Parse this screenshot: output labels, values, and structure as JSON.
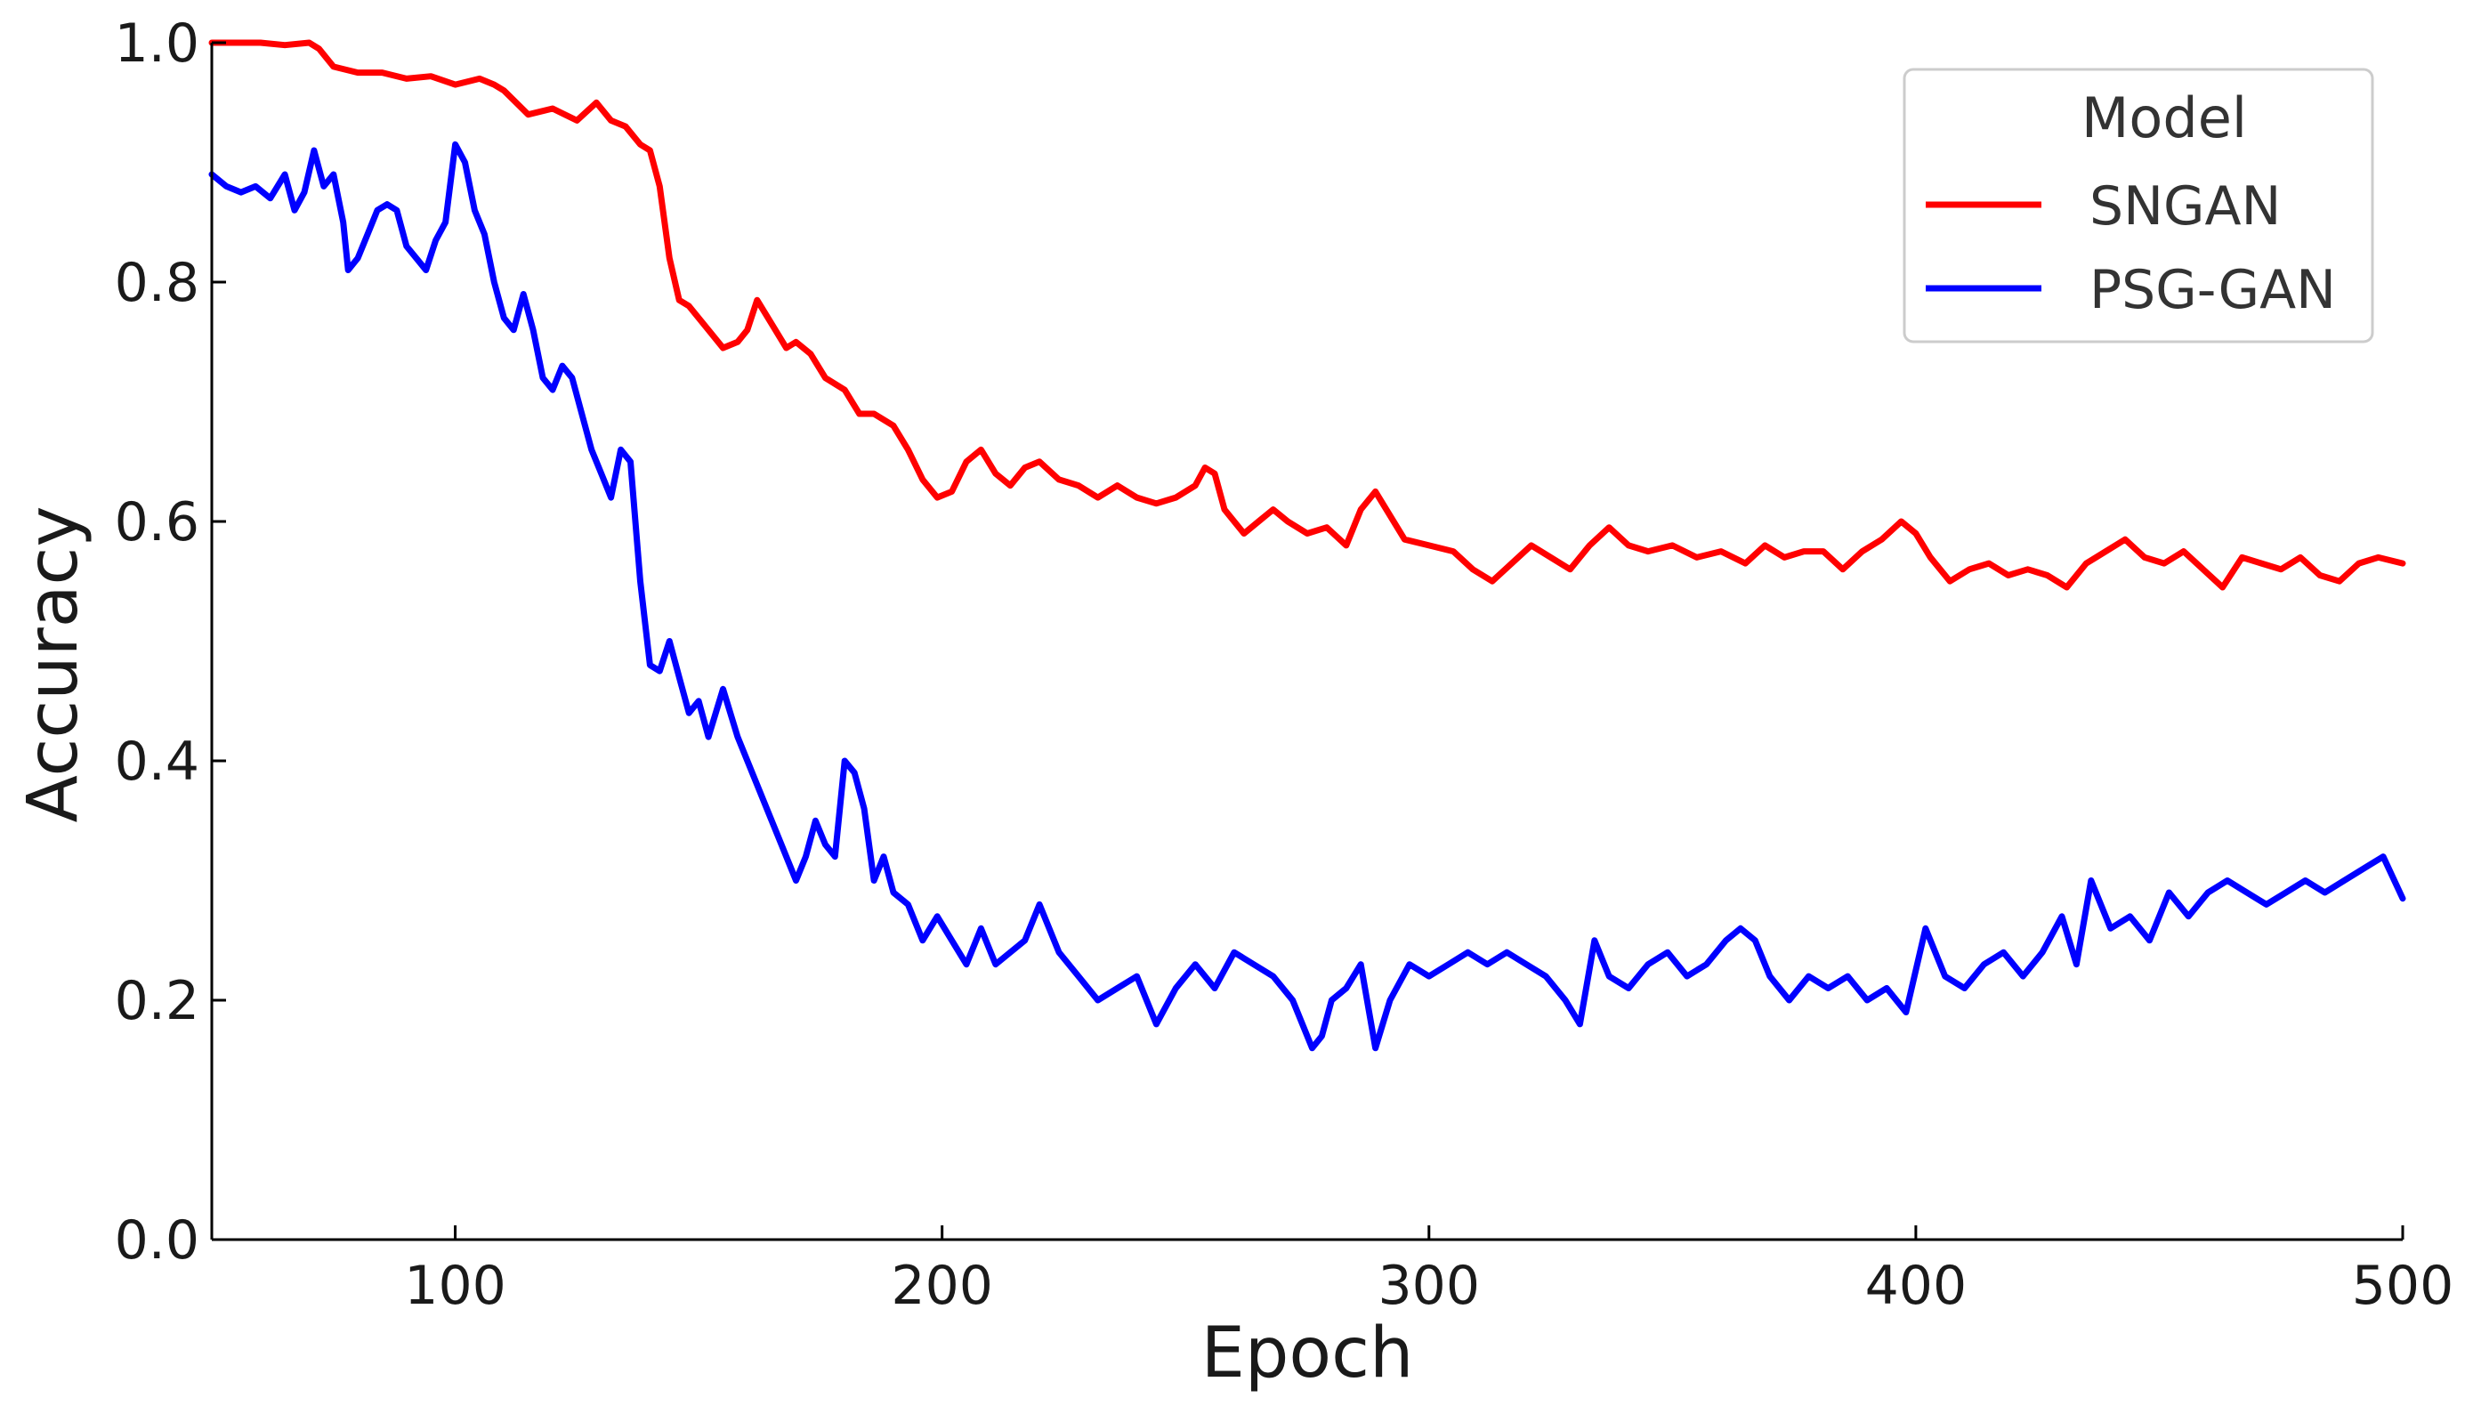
{
  "chart_data": {
    "type": "line",
    "title": "",
    "xlabel": "Epoch",
    "ylabel": "Accuracy",
    "xlim": [
      50,
      500
    ],
    "ylim": [
      0.0,
      1.0
    ],
    "x_ticks": [
      "100",
      "200",
      "300",
      "400",
      "500"
    ],
    "x_tick_values": [
      100,
      200,
      300,
      400,
      500
    ],
    "y_ticks": [
      "0.0",
      "0.2",
      "0.4",
      "0.6",
      "0.8",
      "1.0"
    ],
    "y_tick_values": [
      0.0,
      0.2,
      0.4,
      0.6,
      0.8,
      1.0
    ],
    "grid": false,
    "legend": {
      "title": "Model",
      "placement": "top-right"
    },
    "series": [
      {
        "name": "SNGAN",
        "color": "#ff0000",
        "x": [
          50,
          55,
          60,
          65,
          70,
          72,
          75,
          80,
          85,
          90,
          95,
          100,
          105,
          108,
          110,
          115,
          120,
          125,
          129,
          132,
          135,
          138,
          140,
          142,
          144,
          146,
          148,
          150,
          152,
          155,
          158,
          160,
          162,
          165,
          168,
          170,
          173,
          176,
          180,
          183,
          186,
          190,
          193,
          196,
          199,
          202,
          205,
          208,
          211,
          214,
          217,
          220,
          224,
          228,
          232,
          236,
          240,
          244,
          248,
          252,
          254,
          256,
          258,
          262,
          265,
          268,
          271,
          275,
          279,
          283,
          286,
          289,
          292,
          295,
          300,
          305,
          309,
          313,
          317,
          321,
          325,
          329,
          333,
          337,
          341,
          345,
          350,
          355,
          360,
          365,
          369,
          373,
          377,
          381,
          385,
          389,
          393,
          397,
          400,
          403,
          407,
          411,
          415,
          419,
          423,
          427,
          431,
          435,
          439,
          443,
          447,
          451,
          455,
          459,
          463,
          467,
          471,
          475,
          479,
          483,
          487,
          491,
          495,
          500
        ],
        "y": [
          1.0,
          1.0,
          1.0,
          0.998,
          1.0,
          0.995,
          0.98,
          0.975,
          0.975,
          0.97,
          0.972,
          0.965,
          0.97,
          0.965,
          0.96,
          0.94,
          0.945,
          0.935,
          0.95,
          0.935,
          0.93,
          0.915,
          0.91,
          0.88,
          0.82,
          0.785,
          0.78,
          0.77,
          0.76,
          0.745,
          0.75,
          0.76,
          0.785,
          0.765,
          0.745,
          0.75,
          0.74,
          0.72,
          0.71,
          0.69,
          0.69,
          0.68,
          0.66,
          0.635,
          0.62,
          0.625,
          0.65,
          0.66,
          0.64,
          0.63,
          0.645,
          0.65,
          0.635,
          0.63,
          0.62,
          0.63,
          0.62,
          0.615,
          0.62,
          0.63,
          0.645,
          0.64,
          0.61,
          0.59,
          0.6,
          0.61,
          0.6,
          0.59,
          0.595,
          0.58,
          0.61,
          0.625,
          0.605,
          0.585,
          0.58,
          0.575,
          0.56,
          0.55,
          0.565,
          0.58,
          0.57,
          0.56,
          0.58,
          0.595,
          0.58,
          0.575,
          0.58,
          0.57,
          0.575,
          0.565,
          0.58,
          0.57,
          0.575,
          0.575,
          0.56,
          0.575,
          0.585,
          0.6,
          0.59,
          0.57,
          0.55,
          0.56,
          0.565,
          0.555,
          0.56,
          0.555,
          0.545,
          0.565,
          0.575,
          0.585,
          0.57,
          0.565,
          0.575,
          0.56,
          0.545,
          0.57,
          0.565,
          0.56,
          0.57,
          0.555,
          0.55,
          0.565,
          0.57,
          0.565
        ]
      },
      {
        "name": "PSG-GAN",
        "color": "#0000ff",
        "x": [
          50,
          53,
          56,
          59,
          62,
          65,
          67,
          69,
          71,
          73,
          75,
          77,
          78,
          80,
          82,
          84,
          86,
          88,
          90,
          92,
          94,
          96,
          98,
          100,
          102,
          104,
          106,
          108,
          110,
          112,
          114,
          116,
          118,
          120,
          122,
          124,
          126,
          128,
          130,
          132,
          134,
          136,
          138,
          140,
          142,
          144,
          146,
          148,
          150,
          152,
          155,
          158,
          161,
          164,
          167,
          170,
          172,
          174,
          176,
          178,
          180,
          182,
          184,
          186,
          188,
          190,
          193,
          196,
          199,
          202,
          205,
          208,
          211,
          214,
          217,
          220,
          224,
          228,
          232,
          236,
          240,
          244,
          248,
          252,
          256,
          260,
          264,
          268,
          272,
          276,
          278,
          280,
          283,
          286,
          289,
          292,
          296,
          300,
          304,
          308,
          312,
          316,
          320,
          324,
          328,
          331,
          334,
          337,
          341,
          345,
          349,
          353,
          357,
          361,
          364,
          367,
          370,
          374,
          378,
          382,
          386,
          390,
          394,
          398,
          402,
          406,
          410,
          414,
          418,
          422,
          426,
          430,
          433,
          436,
          440,
          444,
          448,
          452,
          456,
          460,
          464,
          468,
          472,
          476,
          480,
          484,
          488,
          492,
          496,
          500
        ],
        "y": [
          0.89,
          0.88,
          0.875,
          0.88,
          0.87,
          0.89,
          0.86,
          0.875,
          0.91,
          0.88,
          0.89,
          0.85,
          0.81,
          0.82,
          0.84,
          0.86,
          0.865,
          0.86,
          0.83,
          0.82,
          0.81,
          0.835,
          0.85,
          0.915,
          0.9,
          0.86,
          0.84,
          0.8,
          0.77,
          0.76,
          0.79,
          0.76,
          0.72,
          0.71,
          0.73,
          0.72,
          0.69,
          0.66,
          0.64,
          0.62,
          0.66,
          0.65,
          0.55,
          0.48,
          0.475,
          0.5,
          0.47,
          0.44,
          0.45,
          0.42,
          0.46,
          0.42,
          0.39,
          0.36,
          0.33,
          0.3,
          0.32,
          0.35,
          0.33,
          0.32,
          0.4,
          0.39,
          0.36,
          0.3,
          0.32,
          0.29,
          0.28,
          0.25,
          0.27,
          0.25,
          0.23,
          0.26,
          0.23,
          0.24,
          0.25,
          0.28,
          0.24,
          0.22,
          0.2,
          0.21,
          0.22,
          0.18,
          0.21,
          0.23,
          0.21,
          0.24,
          0.23,
          0.22,
          0.2,
          0.16,
          0.17,
          0.2,
          0.21,
          0.23,
          0.16,
          0.2,
          0.23,
          0.22,
          0.23,
          0.24,
          0.23,
          0.24,
          0.23,
          0.22,
          0.2,
          0.18,
          0.25,
          0.22,
          0.21,
          0.23,
          0.24,
          0.22,
          0.23,
          0.25,
          0.26,
          0.25,
          0.22,
          0.2,
          0.22,
          0.21,
          0.22,
          0.2,
          0.21,
          0.19,
          0.26,
          0.22,
          0.21,
          0.23,
          0.24,
          0.22,
          0.24,
          0.27,
          0.23,
          0.3,
          0.26,
          0.27,
          0.25,
          0.29,
          0.27,
          0.29,
          0.3,
          0.29,
          0.28,
          0.29,
          0.3,
          0.29,
          0.3,
          0.31,
          0.32,
          0.285
        ]
      }
    ]
  }
}
